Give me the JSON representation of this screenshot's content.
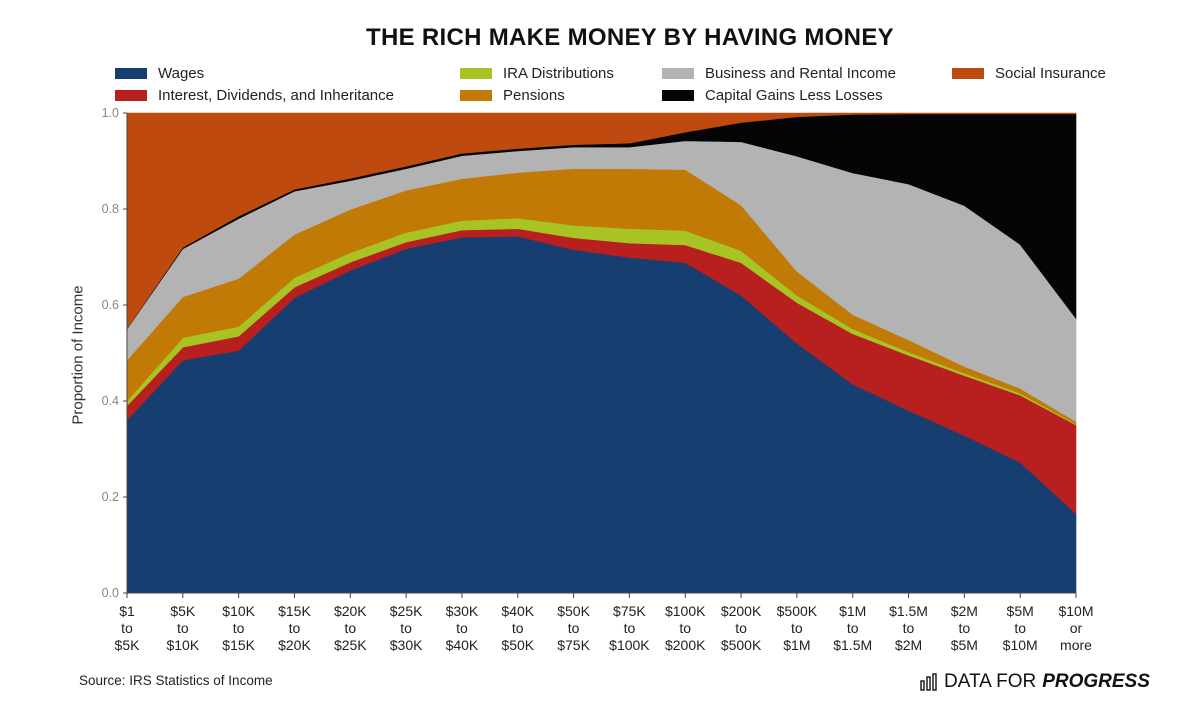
{
  "chart_data": {
    "type": "area",
    "stacked": true,
    "title": "THE RICH MAKE MONEY BY HAVING MONEY",
    "xlabel": "",
    "ylabel": "Proportion of Income",
    "ylim": [
      0,
      1
    ],
    "yticks": [
      "0.0",
      "0.2",
      "0.4",
      "0.6",
      "0.8",
      "1.0"
    ],
    "grid": false,
    "categories": [
      [
        "$1",
        "to",
        "$5K"
      ],
      [
        "$5K",
        "to",
        "$10K"
      ],
      [
        "$10K",
        "to",
        "$15K"
      ],
      [
        "$15K",
        "to",
        "$20K"
      ],
      [
        "$20K",
        "to",
        "$25K"
      ],
      [
        "$25K",
        "to",
        "$30K"
      ],
      [
        "$30K",
        "to",
        "$40K"
      ],
      [
        "$40K",
        "to",
        "$50K"
      ],
      [
        "$50K",
        "to",
        "$75K"
      ],
      [
        "$75K",
        "to",
        "$100K"
      ],
      [
        "$100K",
        "to",
        "$200K"
      ],
      [
        "$200K",
        "to",
        "$500K"
      ],
      [
        "$500K",
        "to",
        "$1M"
      ],
      [
        "$1M",
        "to",
        "$1.5M"
      ],
      [
        "$1.5M",
        "to",
        "$2M"
      ],
      [
        "$2M",
        "to",
        "$5M"
      ],
      [
        "$5M",
        "to",
        "$10M"
      ],
      [
        "$10M",
        "or",
        "more"
      ]
    ],
    "series": [
      {
        "name": "Wages",
        "color": "#163e70",
        "values": [
          0.36,
          0.485,
          0.505,
          0.615,
          0.672,
          0.717,
          0.741,
          0.743,
          0.715,
          0.699,
          0.688,
          0.62,
          0.52,
          0.435,
          0.38,
          0.328,
          0.272,
          0.165
        ]
      },
      {
        "name": "Interest, Dividends, and Inheritance",
        "color": "#b81f1f",
        "values": [
          0.03,
          0.027,
          0.03,
          0.022,
          0.017,
          0.014,
          0.015,
          0.016,
          0.025,
          0.03,
          0.037,
          0.068,
          0.085,
          0.105,
          0.115,
          0.125,
          0.14,
          0.185
        ]
      },
      {
        "name": "IRA Distributions",
        "color": "#a7c424",
        "values": [
          0.01,
          0.02,
          0.02,
          0.02,
          0.02,
          0.02,
          0.02,
          0.022,
          0.026,
          0.03,
          0.03,
          0.025,
          0.015,
          0.01,
          0.007,
          0.005,
          0.004,
          0.002
        ]
      },
      {
        "name": "Pensions",
        "color": "#c07a05",
        "values": [
          0.085,
          0.085,
          0.1,
          0.09,
          0.09,
          0.088,
          0.087,
          0.095,
          0.118,
          0.125,
          0.127,
          0.095,
          0.05,
          0.03,
          0.025,
          0.014,
          0.01,
          0.005
        ]
      },
      {
        "name": "Business and Rental Income",
        "color": "#b3b3b3",
        "values": [
          0.065,
          0.1,
          0.125,
          0.09,
          0.06,
          0.045,
          0.048,
          0.045,
          0.045,
          0.045,
          0.06,
          0.132,
          0.24,
          0.295,
          0.325,
          0.335,
          0.3,
          0.215
        ]
      },
      {
        "name": "Capital Gains Less Losses",
        "color": "#050505",
        "values": [
          0.001,
          0.003,
          0.005,
          0.004,
          0.005,
          0.005,
          0.005,
          0.005,
          0.005,
          0.008,
          0.018,
          0.04,
          0.082,
          0.122,
          0.146,
          0.191,
          0.272,
          0.426
        ]
      },
      {
        "name": "Social Insurance",
        "color": "#be4a10",
        "values": [
          0.449,
          0.28,
          0.215,
          0.159,
          0.136,
          0.111,
          0.084,
          0.074,
          0.066,
          0.063,
          0.04,
          0.02,
          0.008,
          0.003,
          0.002,
          0.002,
          0.002,
          0.002
        ]
      }
    ],
    "legend_position": "top",
    "source": "Source: IRS Statistics of Income"
  },
  "brand": {
    "left": "DATA FOR",
    "right": "PROGRESS"
  }
}
